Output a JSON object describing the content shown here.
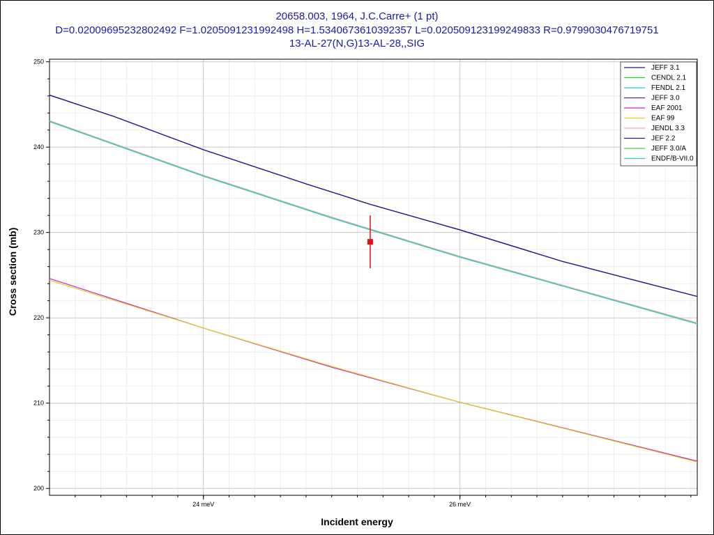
{
  "chart_data": {
    "type": "line",
    "title_lines": [
      "20658.003, 1964, J.C.Carre+ (1 pt)",
      "D=0.02009695232802492 F=1.0205091231992498 H=1.5340673610392357 L=0.020509123199249833 R=0.9799030476719751",
      "13-AL-27(N,G)13-AL-28,,SIG"
    ],
    "xlabel": "Incident energy",
    "ylabel": "Cross section (mb)",
    "xunit": "meV",
    "xlim": [
      22.8,
      27.85
    ],
    "ylim": [
      199.2,
      250.3
    ],
    "x_ticks": [
      {
        "value": 24,
        "label": "24 meV"
      },
      {
        "value": 26,
        "label": "26 meV"
      }
    ],
    "y_ticks": [
      {
        "value": 200,
        "label": "200"
      },
      {
        "value": 210,
        "label": "210"
      },
      {
        "value": 220,
        "label": "220"
      },
      {
        "value": 230,
        "label": "230"
      },
      {
        "value": 240,
        "label": "240"
      },
      {
        "value": 250,
        "label": "250"
      }
    ],
    "grid": true,
    "legend_position": "top-right",
    "series": [
      {
        "name": "JEFF 3.1",
        "color": "#1a1a8c",
        "x": [
          22.8,
          23.3,
          24.0,
          24.8,
          25.3,
          26.0,
          26.8,
          27.85
        ],
        "y": [
          246.1,
          243.6,
          239.7,
          235.7,
          233.3,
          230.3,
          226.6,
          222.5
        ]
      },
      {
        "name": "CENDL 2.1",
        "color": "#22cc22",
        "x": [
          22.8,
          24.0,
          25.0,
          26.0,
          27.85
        ],
        "y": [
          243.0,
          236.6,
          231.7,
          227.1,
          219.3
        ]
      },
      {
        "name": "FENDL 2.1",
        "color": "#22cccc",
        "x": [
          22.8,
          24.0,
          25.0,
          26.0,
          27.85
        ],
        "y": [
          243.0,
          236.6,
          231.7,
          227.1,
          219.3
        ]
      },
      {
        "name": "JEFF 3.0",
        "color": "#333399",
        "x": [
          22.8,
          23.3,
          24.0,
          24.8,
          25.3,
          26.0,
          26.8,
          27.85
        ],
        "y": [
          246.1,
          243.6,
          239.7,
          235.7,
          233.3,
          230.3,
          226.6,
          222.5
        ]
      },
      {
        "name": "EAF 2001",
        "color": "#cc22cc",
        "x": [
          22.8,
          24.0,
          25.0,
          26.0,
          27.85
        ],
        "y": [
          224.6,
          218.8,
          214.2,
          210.1,
          203.2
        ]
      },
      {
        "name": "EAF 99",
        "color": "#ddcc22",
        "x": [
          22.8,
          24.0,
          25.0,
          26.0,
          27.85
        ],
        "y": [
          224.4,
          218.8,
          214.3,
          210.1,
          203.1
        ]
      },
      {
        "name": "JENDL 3.3",
        "color": "#eeaaaa",
        "x": [
          22.8,
          24.0,
          25.0,
          26.0,
          27.85
        ],
        "y": [
          243.1,
          236.7,
          231.8,
          227.2,
          219.4
        ]
      },
      {
        "name": "JEF 2.2",
        "color": "#1a1a8c",
        "x": [
          22.8,
          23.3,
          24.0,
          24.8,
          25.3,
          26.0,
          26.8,
          27.85
        ],
        "y": [
          246.1,
          243.6,
          239.7,
          235.7,
          233.3,
          230.3,
          226.6,
          222.5
        ]
      },
      {
        "name": "JEFF 3.0/A",
        "color": "#44cc44",
        "x": [
          22.8,
          24.0,
          25.0,
          26.0,
          27.85
        ],
        "y": [
          243.0,
          236.6,
          231.7,
          227.1,
          219.3
        ]
      },
      {
        "name": "ENDF/B-VII.0",
        "color": "#22cccc",
        "x": [
          22.8,
          24.0,
          25.0,
          26.0,
          27.85
        ],
        "y": [
          243.0,
          236.6,
          231.7,
          227.1,
          219.3
        ]
      }
    ],
    "experimental_points": [
      {
        "x": 25.3,
        "y": 228.9,
        "yerr": 3.1,
        "color": "#dd1111"
      }
    ]
  }
}
